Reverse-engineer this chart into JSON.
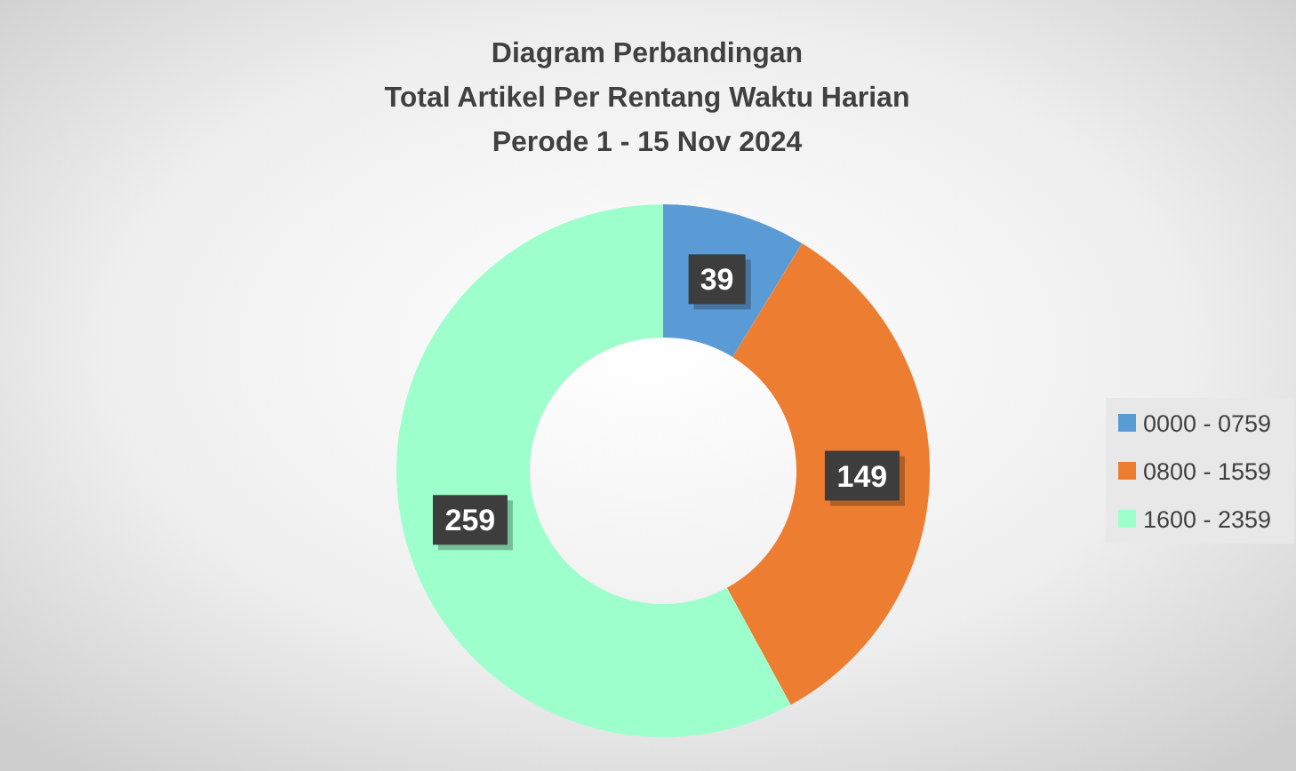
{
  "chart_data": {
    "type": "donut",
    "title": "Diagram Perbandingan\nTotal Artikel Per Rentang Waktu Harian",
    "subtitle": "Perode 1 - 15 Nov 2024",
    "categories": [
      "0000 - 0759",
      "0800 - 1559",
      "1600 - 2359"
    ],
    "values": [
      39,
      149,
      259
    ],
    "colors": [
      "#5b9bd5",
      "#ed7d31",
      "#9dffcb"
    ],
    "data_labels": true,
    "legend": "right"
  }
}
